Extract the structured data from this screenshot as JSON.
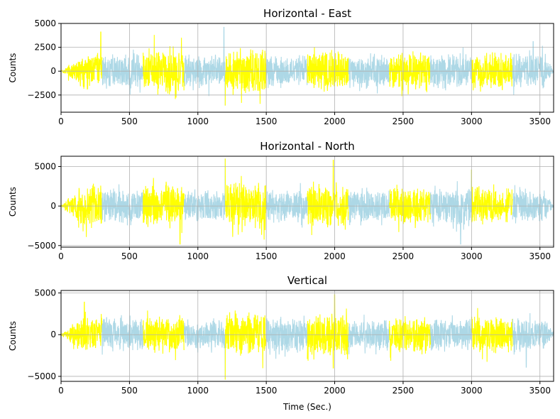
{
  "chart_data": [
    {
      "type": "line",
      "title": "Horizontal - East",
      "ylabel": "Counts",
      "xlabel": "",
      "xlim": [
        0,
        3600
      ],
      "ylim": [
        -4300,
        5000
      ],
      "xticks": [
        0,
        500,
        1000,
        1500,
        2000,
        2500,
        3000,
        3500
      ],
      "yticks": [
        -2500,
        0,
        2500,
        5000
      ],
      "grid": true,
      "segment_length": 300,
      "series_colors": [
        "#ffff00",
        "#add8e6"
      ],
      "segment_amplitudes": [
        2600,
        2400,
        3100,
        2300,
        3200,
        2200,
        2800,
        2500,
        2600,
        2500,
        2700,
        2400
      ],
      "peaks": [
        [
          290,
          4100
        ],
        [
          1190,
          4600
        ],
        [
          1200,
          -3600
        ],
        [
          880,
          3500
        ],
        [
          3450,
          3100
        ]
      ]
    },
    {
      "type": "line",
      "title": "Horizontal - North",
      "ylabel": "Counts",
      "xlabel": "",
      "xlim": [
        0,
        3600
      ],
      "ylim": [
        -5200,
        6300
      ],
      "xticks": [
        0,
        500,
        1000,
        1500,
        2000,
        2500,
        3000,
        3500
      ],
      "yticks": [
        -5000,
        0,
        5000
      ],
      "grid": true,
      "segment_length": 300,
      "series_colors": [
        "#ffff00",
        "#add8e6"
      ],
      "segment_amplitudes": [
        3600,
        2900,
        3600,
        2600,
        3800,
        2700,
        3500,
        2700,
        3100,
        3300,
        3200,
        2800
      ],
      "peaks": [
        [
          1200,
          6000
        ],
        [
          1990,
          5800
        ],
        [
          870,
          -4800
        ],
        [
          2920,
          -4800
        ],
        [
          3000,
          4600
        ]
      ]
    },
    {
      "type": "line",
      "title": "Vertical",
      "ylabel": "Counts",
      "xlabel": "Time (Sec.)",
      "xlim": [
        0,
        3600
      ],
      "ylim": [
        -5600,
        5300
      ],
      "xticks": [
        0,
        500,
        1000,
        1500,
        2000,
        2500,
        3000,
        3500
      ],
      "yticks": [
        -5000,
        0,
        5000
      ],
      "grid": true,
      "segment_length": 300,
      "series_colors": [
        "#ffff00",
        "#add8e6"
      ],
      "segment_amplitudes": [
        3000,
        2700,
        3000,
        2300,
        3400,
        2700,
        3500,
        2300,
        2900,
        2700,
        3000,
        2600
      ],
      "peaks": [
        [
          2000,
          4800
        ],
        [
          1200,
          -5400
        ],
        [
          1990,
          -4000
        ],
        [
          3400,
          -3900
        ],
        [
          170,
          3900
        ]
      ]
    }
  ]
}
